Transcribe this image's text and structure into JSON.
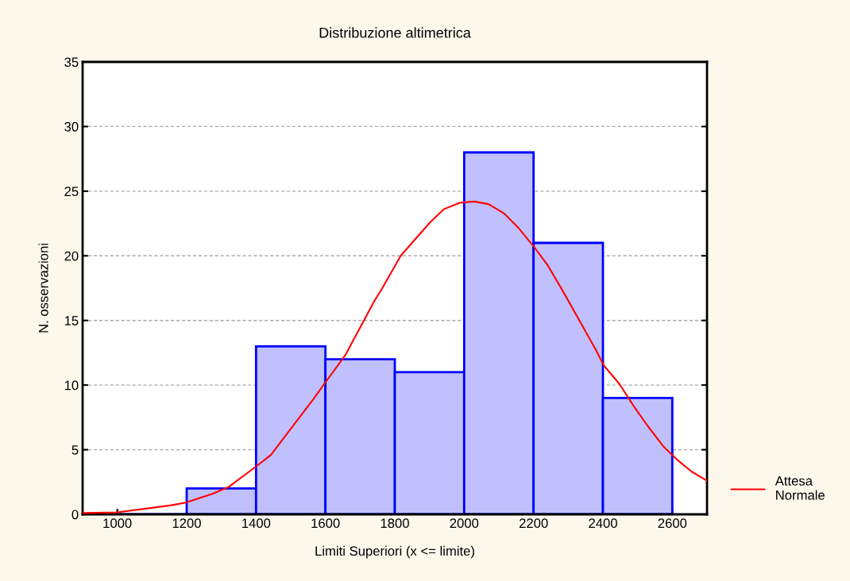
{
  "chart_data": {
    "type": "histogram",
    "title": "Distribuzione altimetrica",
    "xlabel": "Limiti Superiori (x <= limite)",
    "ylabel": "N. osservazioni",
    "bins": [
      1000,
      1200,
      1400,
      1600,
      1800,
      2000,
      2200,
      2400,
      2600
    ],
    "values": [
      0,
      2,
      13,
      12,
      11,
      28,
      21,
      9
    ],
    "colors": [
      "#0000ff",
      "#c0c0ff",
      "#c0c0ff",
      "#c0c0ff",
      "#c0c0ff",
      "#c0c0ff",
      "#c0c0ff",
      "#c0c0ff"
    ],
    "series": [
      {
        "type": "line",
        "name": "Attesa\nNormale",
        "color": "#ff0000",
        "x": [
          900,
          1000,
          1155,
          1197,
          1275,
          1320,
          1400,
          1443,
          1505,
          1565,
          1597,
          1657,
          1741,
          1764,
          1817,
          1856,
          1902,
          1941,
          1987,
          2029,
          2070,
          2114,
          2155,
          2201,
          2240,
          2286,
          2332,
          2378,
          2403,
          2447,
          2493,
          2530,
          2576,
          2615,
          2656,
          2700
        ],
        "values": [
          0.1,
          0.15,
          0.7,
          0.9,
          1.6,
          2.1,
          3.7,
          4.6,
          6.8,
          8.9,
          10.1,
          12.3,
          16.5,
          17.5,
          20.0,
          21.2,
          22.6,
          23.6,
          24.1,
          24.2,
          24.0,
          23.3,
          22.2,
          20.7,
          19.3,
          17.2,
          15.0,
          12.8,
          11.5,
          10.1,
          8.2,
          6.8,
          5.2,
          4.2,
          3.3,
          2.6
        ]
      }
    ],
    "xlim": [
      900,
      2700
    ],
    "xticks": [
      1000,
      1200,
      1400,
      1600,
      1800,
      2000,
      2200,
      2400,
      2600
    ],
    "ylim": [
      0,
      35
    ],
    "yticks": [
      0,
      5,
      10,
      15,
      20,
      25,
      30,
      35
    ],
    "grid": "y",
    "legend": "bottom right"
  }
}
